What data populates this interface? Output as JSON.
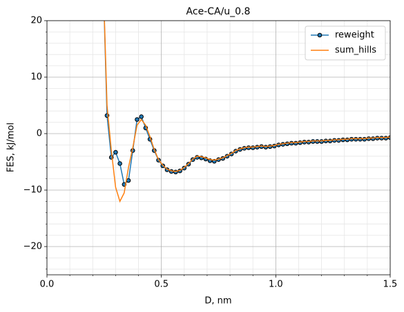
{
  "chart_data": {
    "type": "line",
    "title": "Ace-CA/u_0.8",
    "xlabel": "D, nm",
    "ylabel": "FES, kJ/mol",
    "x": [
      0.24375,
      0.2625,
      0.28125,
      0.3,
      0.31875,
      0.3375,
      0.35625,
      0.375,
      0.39375,
      0.4125,
      0.43125,
      0.45,
      0.46875,
      0.4875,
      0.50625,
      0.525,
      0.54375,
      0.5625,
      0.58125,
      0.6,
      0.61875,
      0.6375,
      0.65625,
      0.675,
      0.69375,
      0.7125,
      0.73125,
      0.75,
      0.76875,
      0.7875,
      0.80625,
      0.825,
      0.84375,
      0.8625,
      0.88125,
      0.9,
      0.91875,
      0.9375,
      0.95625,
      0.975,
      0.99375,
      1.0125,
      1.03125,
      1.05,
      1.06875,
      1.0875,
      1.10625,
      1.125,
      1.14375,
      1.1625,
      1.18125,
      1.2,
      1.21875,
      1.2375,
      1.25625,
      1.275,
      1.29375,
      1.3125,
      1.33125,
      1.35,
      1.36875,
      1.3875,
      1.40625,
      1.425,
      1.44375,
      1.4625,
      1.48125,
      1.5
    ],
    "series": [
      {
        "name": "reweight",
        "color": "#1f77b4",
        "marker": true,
        "values": [
          30,
          3.2,
          -4.2,
          -3.3,
          -5.3,
          -9.0,
          -8.3,
          -3.0,
          2.5,
          3.0,
          1.0,
          -1.0,
          -3.0,
          -4.7,
          -5.7,
          -6.4,
          -6.7,
          -6.8,
          -6.6,
          -6.1,
          -5.4,
          -4.6,
          -4.2,
          -4.3,
          -4.5,
          -4.8,
          -4.9,
          -4.6,
          -4.4,
          -4.0,
          -3.6,
          -3.1,
          -2.8,
          -2.6,
          -2.5,
          -2.5,
          -2.4,
          -2.3,
          -2.4,
          -2.3,
          -2.2,
          -2.0,
          -1.9,
          -1.8,
          -1.7,
          -1.7,
          -1.6,
          -1.5,
          -1.5,
          -1.4,
          -1.4,
          -1.4,
          -1.3,
          -1.3,
          -1.2,
          -1.2,
          -1.1,
          -1.1,
          -1.0,
          -1.0,
          -1.0,
          -1.0,
          -0.9,
          -0.9,
          -0.8,
          -0.8,
          -0.8,
          -0.7
        ]
      },
      {
        "name": "sum_hills",
        "color": "#ff7f0e",
        "marker": false,
        "values": [
          30,
          5.0,
          -3.0,
          -9.5,
          -12.0,
          -10.5,
          -6.0,
          -2.5,
          1.5,
          2.5,
          1.5,
          -0.5,
          -2.8,
          -4.6,
          -5.6,
          -6.3,
          -6.6,
          -6.7,
          -6.5,
          -6.0,
          -5.3,
          -4.5,
          -4.0,
          -4.1,
          -4.3,
          -4.6,
          -4.7,
          -4.5,
          -4.3,
          -3.9,
          -3.5,
          -3.0,
          -2.7,
          -2.5,
          -2.4,
          -2.4,
          -2.3,
          -2.2,
          -2.3,
          -2.2,
          -2.1,
          -1.9,
          -1.8,
          -1.7,
          -1.6,
          -1.6,
          -1.5,
          -1.4,
          -1.4,
          -1.3,
          -1.3,
          -1.3,
          -1.2,
          -1.2,
          -1.1,
          -1.1,
          -1.0,
          -1.0,
          -0.9,
          -0.9,
          -0.9,
          -0.9,
          -0.8,
          -0.8,
          -0.7,
          -0.7,
          -0.7,
          -0.6
        ]
      }
    ],
    "xlim": [
      0,
      1.5
    ],
    "ylim": [
      -25,
      20
    ],
    "xticks": [
      {
        "value": 0,
        "label": "0.0"
      },
      0.5,
      {
        "value": 1,
        "label": "1.0"
      },
      1.5
    ],
    "yticks": [
      {
        "value": -20,
        "label": "−20"
      },
      {
        "value": -10,
        "label": "−10"
      },
      0,
      10,
      20
    ],
    "minor_xticks": [
      0.1,
      0.2,
      0.3,
      0.4,
      0.6,
      0.7,
      0.8,
      0.9,
      1.1,
      1.2,
      1.3,
      1.4
    ],
    "minor_yticks": [
      -24,
      -22,
      -18,
      -16,
      -14,
      -12,
      -8,
      -6,
      -4,
      -2,
      2,
      4,
      6,
      8,
      12,
      14,
      16,
      18
    ],
    "grid": true,
    "legend": "upper right"
  }
}
